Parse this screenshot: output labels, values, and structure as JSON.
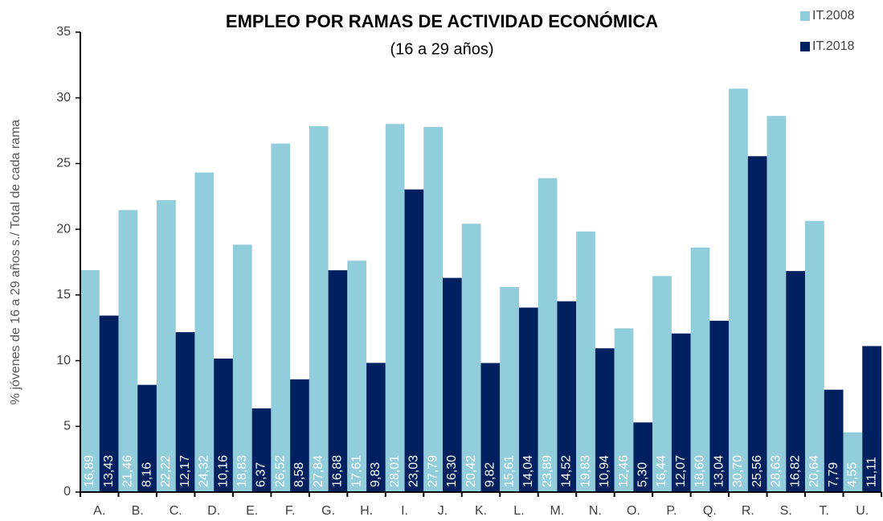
{
  "chart_data": {
    "type": "bar",
    "title": "EMPLEO POR RAMAS DE ACTIVIDAD ECONÓMICA",
    "subtitle": "(16 a 29 años)",
    "y_label": "% jóvenes de 16 a 29 años s./ Total de cada rama",
    "categories": [
      "A.",
      "B.",
      "C.",
      "D.",
      "E.",
      "F.",
      "G.",
      "H.",
      "I.",
      "J.",
      "K.",
      "L.",
      "M.",
      "N.",
      "O.",
      "P.",
      "Q.",
      "R.",
      "S.",
      "T.",
      "U."
    ],
    "series": [
      {
        "name": "IT.2008",
        "color": "#92cddc",
        "values": [
          16.89,
          21.46,
          22.22,
          24.32,
          18.83,
          26.52,
          27.84,
          17.61,
          28.01,
          27.79,
          20.42,
          15.61,
          23.89,
          19.83,
          12.46,
          16.44,
          18.6,
          30.7,
          28.63,
          20.64,
          4.55
        ],
        "value_labels": [
          "16,89",
          "21,46",
          "22,22",
          "24,32",
          "18,83",
          "26,52",
          "27,84",
          "17,61",
          "28,01",
          "27,79",
          "20,42",
          "15,61",
          "23,89",
          "19,83",
          "12,46",
          "16,44",
          "18,60",
          "30,70",
          "28,63",
          "20,64",
          "4,55"
        ]
      },
      {
        "name": "IT.2018",
        "color": "#002060",
        "values": [
          13.43,
          8.16,
          12.17,
          10.16,
          6.37,
          8.58,
          16.88,
          9.83,
          23.03,
          16.3,
          9.82,
          14.04,
          14.52,
          10.94,
          5.3,
          12.07,
          13.04,
          25.56,
          16.82,
          7.79,
          11.11
        ],
        "value_labels": [
          "13,43",
          "8,16",
          "12,17",
          "10,16",
          "6,37",
          "8,58",
          "16,88",
          "9,83",
          "23,03",
          "16,30",
          "9,82",
          "14,04",
          "14,52",
          "10,94",
          "5,30",
          "12,07",
          "13,04",
          "25,56",
          "16,82",
          "7,79",
          "11,11"
        ]
      }
    ],
    "ylim": [
      0,
      35
    ],
    "yticks": [
      0,
      5,
      10,
      15,
      20,
      25,
      30,
      35
    ],
    "legend": "top-right"
  }
}
